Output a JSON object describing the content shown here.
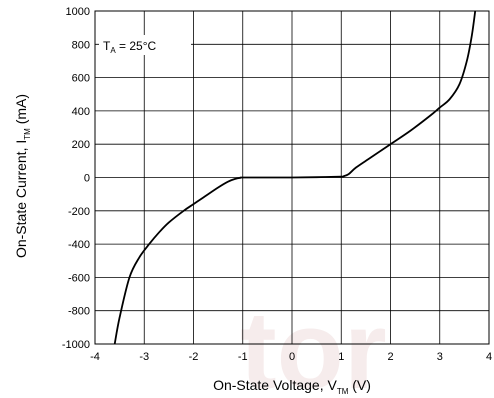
{
  "chart_data": {
    "type": "line",
    "title": "",
    "annotation": {
      "main": "T",
      "sub": "A",
      "rest": " = 25°C"
    },
    "xlabel": {
      "main": "On-State Voltage, V",
      "sub": "TM",
      "rest": " (V)"
    },
    "ylabel": {
      "main": "On-State Current, I",
      "sub": "TM",
      "rest": " (mA)"
    },
    "xlim": [
      -4,
      4
    ],
    "ylim": [
      -1000,
      1000
    ],
    "xticks": [
      -4,
      -3,
      -2,
      -1,
      0,
      1,
      2,
      3,
      4
    ],
    "yticks": [
      1000,
      800,
      600,
      400,
      200,
      0,
      -200,
      -400,
      -600,
      -800,
      -1000
    ],
    "grid": true,
    "watermark": "tor",
    "colors": {
      "line": "#000000",
      "grid": "#000000",
      "watermark": "#f6ecec"
    },
    "series": [
      {
        "x": [
          -3.6,
          -3.5,
          -3.3,
          -3.1,
          -2.9,
          -2.7,
          -2.5,
          -2.2,
          -2.0,
          -1.8,
          -1.5,
          -1.3,
          -1.15,
          -1.05,
          -1.0,
          -0.5,
          0.0,
          0.5,
          1.0,
          1.05,
          1.15,
          1.3,
          1.6,
          2.0,
          2.4,
          2.8,
          3.0,
          3.2,
          3.4,
          3.55,
          3.65,
          3.72
        ],
        "y": [
          -1000,
          -840,
          -600,
          -480,
          -400,
          -330,
          -270,
          -200,
          -160,
          -120,
          -60,
          -25,
          -8,
          -2,
          0,
          0,
          0,
          2,
          5,
          8,
          20,
          60,
          120,
          200,
          280,
          370,
          420,
          470,
          560,
          700,
          850,
          1000
        ]
      }
    ]
  }
}
